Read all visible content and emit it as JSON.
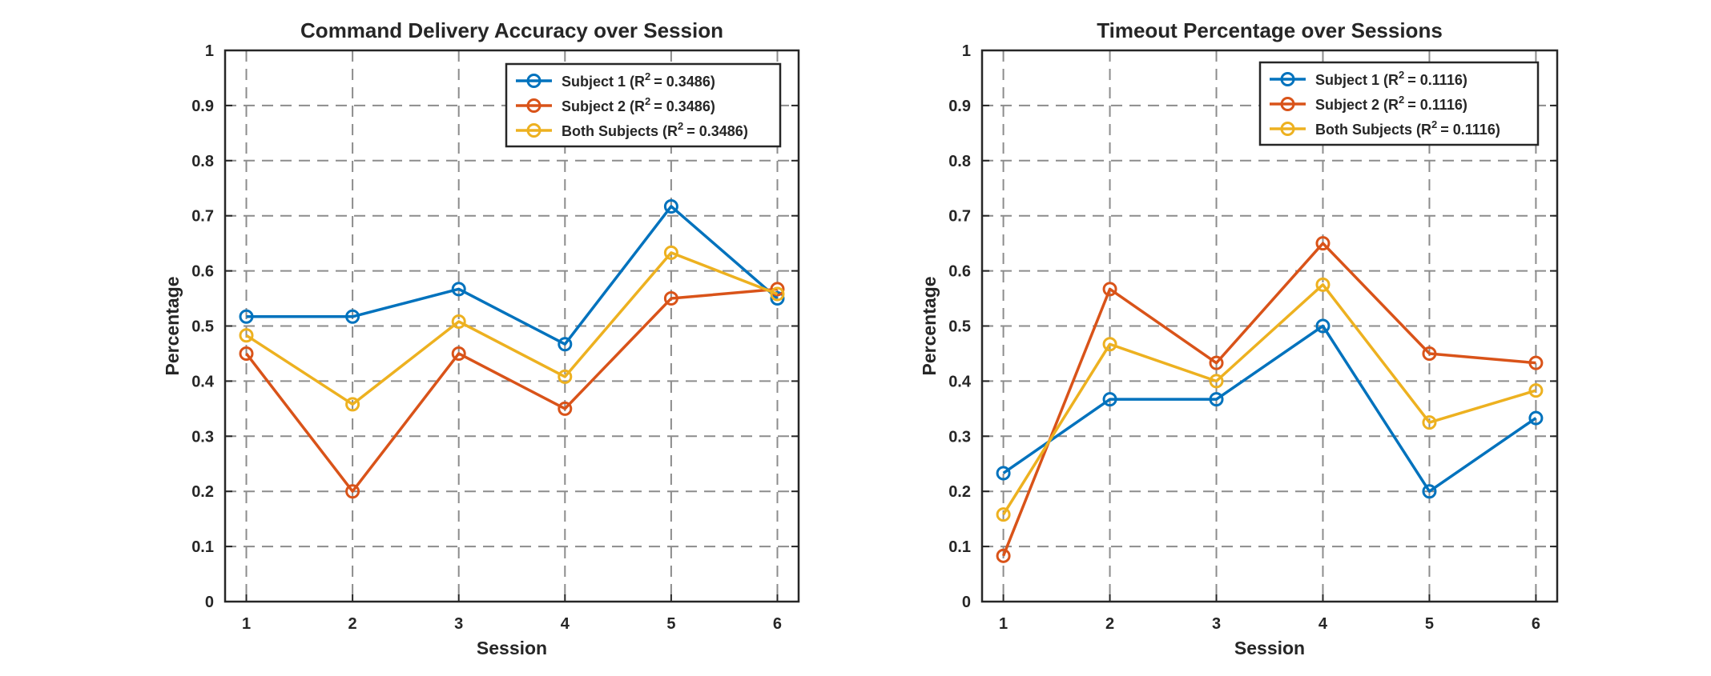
{
  "colors": {
    "subject1": "#0072BD",
    "subject2": "#D95319",
    "both": "#EDB120",
    "grid": "#8c8c8c",
    "axis": "#262626"
  },
  "chart_data": [
    {
      "type": "line",
      "title": "Command Delivery Accuracy over Session",
      "xlabel": "Session",
      "ylabel": "Percentage",
      "categories": [
        "1",
        "2",
        "3",
        "4",
        "5",
        "6"
      ],
      "x": [
        1,
        2,
        3,
        4,
        5,
        6
      ],
      "xlim": [
        0.8,
        6.2
      ],
      "ylim": [
        0,
        1
      ],
      "yticks": [
        "0",
        "0.1",
        "0.2",
        "0.3",
        "0.4",
        "0.5",
        "0.6",
        "0.7",
        "0.8",
        "0.9",
        "1"
      ],
      "grid": true,
      "grid_style": "dashed",
      "legend_position": "top-right",
      "marker": "circle",
      "series": [
        {
          "name": "Subject 1",
          "r2_label": "R",
          "r2_exp": "2",
          "r2_value": "= 0.3486)",
          "color": "#0072BD",
          "values": [
            0.517,
            0.517,
            0.567,
            0.467,
            0.717,
            0.55
          ]
        },
        {
          "name": "Subject 2",
          "r2_label": "R",
          "r2_exp": "2",
          "r2_value": "= 0.3486)",
          "color": "#D95319",
          "values": [
            0.45,
            0.2,
            0.45,
            0.35,
            0.55,
            0.567
          ]
        },
        {
          "name": "Both Subjects",
          "r2_label": "R",
          "r2_exp": "2",
          "r2_value": "= 0.3486)",
          "color": "#EDB120",
          "values": [
            0.483,
            0.358,
            0.508,
            0.408,
            0.633,
            0.558
          ]
        }
      ]
    },
    {
      "type": "line",
      "title": "Timeout Percentage over Sessions",
      "xlabel": "Session",
      "ylabel": "Percentage",
      "categories": [
        "1",
        "2",
        "3",
        "4",
        "5",
        "6"
      ],
      "x": [
        1,
        2,
        3,
        4,
        5,
        6
      ],
      "xlim": [
        0.8,
        6.2
      ],
      "ylim": [
        0,
        1
      ],
      "yticks": [
        "0",
        "0.1",
        "0.2",
        "0.3",
        "0.4",
        "0.5",
        "0.6",
        "0.7",
        "0.8",
        "0.9",
        "1"
      ],
      "grid": true,
      "grid_style": "dashed",
      "legend_position": "top-right",
      "marker": "circle",
      "series": [
        {
          "name": "Subject 1",
          "r2_label": "R",
          "r2_exp": "2",
          "r2_value": "= 0.1116)",
          "color": "#0072BD",
          "values": [
            0.233,
            0.367,
            0.367,
            0.5,
            0.2,
            0.333
          ]
        },
        {
          "name": "Subject 2",
          "r2_label": "R",
          "r2_exp": "2",
          "r2_value": "= 0.1116)",
          "color": "#D95319",
          "values": [
            0.083,
            0.567,
            0.433,
            0.65,
            0.45,
            0.433
          ]
        },
        {
          "name": "Both Subjects",
          "r2_label": "R",
          "r2_exp": "2",
          "r2_value": "= 0.1116)",
          "color": "#EDB120",
          "values": [
            0.158,
            0.467,
            0.4,
            0.575,
            0.325,
            0.383
          ]
        }
      ]
    }
  ]
}
